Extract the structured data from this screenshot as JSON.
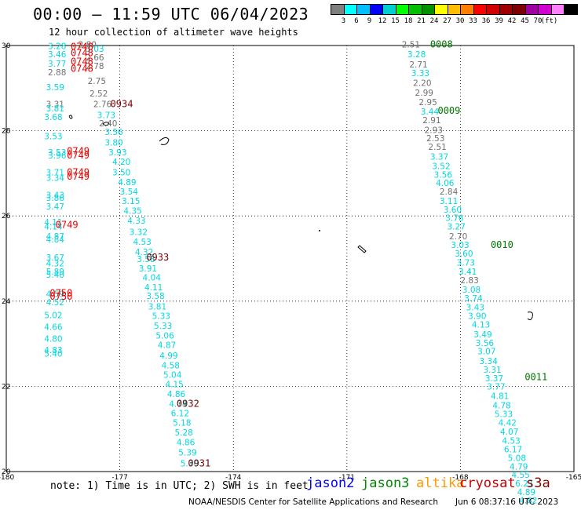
{
  "header": {
    "title": "00:00 – 11:59 UTC 06/04/2023",
    "subtitle": "12 hour collection of altimeter wave heights"
  },
  "colorbar": {
    "unit_label": "(ft)",
    "colors": [
      "#7f7f7f",
      "#00ffff",
      "#00bfff",
      "#0000ff",
      "#00cfcf",
      "#00ff00",
      "#00c000",
      "#009000",
      "#ffff00",
      "#ffbf00",
      "#ff8000",
      "#ff0000",
      "#d00000",
      "#a00000",
      "#800000",
      "#a000a0",
      "#d000d0",
      "#ff80ff",
      "#000000"
    ],
    "labels": [
      "3",
      "6",
      "9",
      "12",
      "15",
      "18",
      "21",
      "24",
      "27",
      "30",
      "33",
      "36",
      "39",
      "42",
      "45",
      "70"
    ]
  },
  "chart_data": {
    "type": "scatter",
    "title": "00:00 – 11:59 UTC 06/04/2023",
    "subtitle": "12 hour collection of altimeter wave heights",
    "xlim": [
      -180,
      -165
    ],
    "ylim": [
      20,
      30
    ],
    "x_ticks": [
      "-180",
      "-177",
      "-174",
      "-171",
      "-168",
      "-165"
    ],
    "x_tick_values": [
      -180,
      -177,
      -174,
      -171,
      -168,
      -165
    ],
    "y_ticks": [
      "20",
      "22",
      "24",
      "26",
      "28",
      "30"
    ],
    "y_tick_values": [
      20,
      22,
      24,
      26,
      28,
      30
    ],
    "grid": true,
    "series_colors": {
      "jason2": "#0000ff",
      "jason3": "#008800",
      "altika": "#ff9900",
      "cryosat": "#cc0000",
      "s3a": "#880000"
    },
    "swh_colors": {
      "cyan": "#00d8e0",
      "gray": "#707070"
    },
    "swh_points": [
      {
        "x": -178.9,
        "y": 29.92,
        "v": "3.28",
        "c": "cyan"
      },
      {
        "x": -178.9,
        "y": 29.72,
        "v": "3.46",
        "c": "cyan"
      },
      {
        "x": -178.9,
        "y": 29.5,
        "v": "3.77",
        "c": "cyan"
      },
      {
        "x": -178.9,
        "y": 29.3,
        "v": "2.88",
        "c": "gray"
      },
      {
        "x": -178.1,
        "y": 29.95,
        "v": "2.80",
        "c": "gray"
      },
      {
        "x": -177.9,
        "y": 29.85,
        "v": "3.03",
        "c": "cyan"
      },
      {
        "x": -177.9,
        "y": 29.65,
        "v": "2.66",
        "c": "gray"
      },
      {
        "x": -177.9,
        "y": 29.45,
        "v": "2.78",
        "c": "gray"
      },
      {
        "x": -177.85,
        "y": 29.1,
        "v": "2.75",
        "c": "gray"
      },
      {
        "x": -178.95,
        "y": 28.95,
        "v": "3.59",
        "c": "cyan"
      },
      {
        "x": -177.8,
        "y": 28.8,
        "v": "2.52",
        "c": "gray"
      },
      {
        "x": -178.95,
        "y": 28.55,
        "v": "3.31",
        "c": "gray"
      },
      {
        "x": -178.95,
        "y": 28.45,
        "v": "3.81",
        "c": "cyan"
      },
      {
        "x": -177.7,
        "y": 28.55,
        "v": "2.76",
        "c": "gray"
      },
      {
        "x": -177.6,
        "y": 28.3,
        "v": "3.73",
        "c": "cyan"
      },
      {
        "x": -179.0,
        "y": 28.25,
        "v": "3.68",
        "c": "cyan"
      },
      {
        "x": -177.55,
        "y": 28.1,
        "v": "2.40",
        "c": "gray"
      },
      {
        "x": -177.4,
        "y": 27.9,
        "v": "3.56",
        "c": "cyan"
      },
      {
        "x": -179.0,
        "y": 27.8,
        "v": "3.53",
        "c": "cyan"
      },
      {
        "x": -177.4,
        "y": 27.65,
        "v": "3.80",
        "c": "cyan"
      },
      {
        "x": -178.9,
        "y": 27.42,
        "v": "3.53",
        "c": "cyan"
      },
      {
        "x": -178.9,
        "y": 27.35,
        "v": "3.96",
        "c": "cyan"
      },
      {
        "x": -177.3,
        "y": 27.42,
        "v": "3.93",
        "c": "cyan"
      },
      {
        "x": -177.2,
        "y": 27.2,
        "v": "4.20",
        "c": "cyan"
      },
      {
        "x": -178.95,
        "y": 26.95,
        "v": "3.71",
        "c": "cyan"
      },
      {
        "x": -178.95,
        "y": 26.82,
        "v": "3.34",
        "c": "cyan"
      },
      {
        "x": -177.2,
        "y": 26.95,
        "v": "3.50",
        "c": "cyan"
      },
      {
        "x": -177.05,
        "y": 26.72,
        "v": "4.89",
        "c": "cyan"
      },
      {
        "x": -177.0,
        "y": 26.5,
        "v": "3.54",
        "c": "cyan"
      },
      {
        "x": -178.95,
        "y": 26.42,
        "v": "3.43",
        "c": "cyan"
      },
      {
        "x": -178.95,
        "y": 26.35,
        "v": "3.86",
        "c": "cyan"
      },
      {
        "x": -176.95,
        "y": 26.28,
        "v": "3.15",
        "c": "cyan"
      },
      {
        "x": -178.95,
        "y": 26.15,
        "v": "3.47",
        "c": "cyan"
      },
      {
        "x": -176.9,
        "y": 26.05,
        "v": "4.35",
        "c": "cyan"
      },
      {
        "x": -176.8,
        "y": 25.82,
        "v": "4.33",
        "c": "cyan"
      },
      {
        "x": -179.0,
        "y": 25.78,
        "v": "4.11",
        "c": "cyan"
      },
      {
        "x": -179.0,
        "y": 25.68,
        "v": "4.14",
        "c": "cyan"
      },
      {
        "x": -176.75,
        "y": 25.55,
        "v": "3.32",
        "c": "cyan"
      },
      {
        "x": -178.95,
        "y": 25.45,
        "v": "4.87",
        "c": "cyan"
      },
      {
        "x": -178.95,
        "y": 25.38,
        "v": "4.84",
        "c": "cyan"
      },
      {
        "x": -176.65,
        "y": 25.32,
        "v": "4.53",
        "c": "cyan"
      },
      {
        "x": -176.6,
        "y": 25.08,
        "v": "4.32",
        "c": "cyan"
      },
      {
        "x": -178.95,
        "y": 24.95,
        "v": "3.67",
        "c": "cyan"
      },
      {
        "x": -176.55,
        "y": 24.92,
        "v": "3.58",
        "c": "cyan"
      },
      {
        "x": -178.95,
        "y": 24.82,
        "v": "4.32",
        "c": "cyan"
      },
      {
        "x": -176.5,
        "y": 24.7,
        "v": "3.91",
        "c": "cyan"
      },
      {
        "x": -178.95,
        "y": 24.62,
        "v": "5.89",
        "c": "cyan"
      },
      {
        "x": -178.95,
        "y": 24.55,
        "v": "5.40",
        "c": "cyan"
      },
      {
        "x": -176.4,
        "y": 24.48,
        "v": "4.04",
        "c": "cyan"
      },
      {
        "x": -176.35,
        "y": 24.25,
        "v": "4.11",
        "c": "cyan"
      },
      {
        "x": -178.95,
        "y": 24.1,
        "v": "4.59",
        "c": "cyan"
      },
      {
        "x": -176.3,
        "y": 24.05,
        "v": "3.58",
        "c": "cyan"
      },
      {
        "x": -178.95,
        "y": 23.9,
        "v": "4.52",
        "c": "cyan"
      },
      {
        "x": -176.25,
        "y": 23.8,
        "v": "3.81",
        "c": "cyan"
      },
      {
        "x": -179.0,
        "y": 23.6,
        "v": "5.02",
        "c": "cyan"
      },
      {
        "x": -176.15,
        "y": 23.58,
        "v": "5.33",
        "c": "cyan"
      },
      {
        "x": -179.0,
        "y": 23.32,
        "v": "4.66",
        "c": "cyan"
      },
      {
        "x": -176.1,
        "y": 23.35,
        "v": "5.33",
        "c": "cyan"
      },
      {
        "x": -176.05,
        "y": 23.12,
        "v": "5.06",
        "c": "cyan"
      },
      {
        "x": -179.0,
        "y": 23.05,
        "v": "4.80",
        "c": "cyan"
      },
      {
        "x": -176.0,
        "y": 22.9,
        "v": "4.87",
        "c": "cyan"
      },
      {
        "x": -179.0,
        "y": 22.78,
        "v": "4.83",
        "c": "cyan"
      },
      {
        "x": -179.0,
        "y": 22.7,
        "v": "5.40",
        "c": "cyan"
      },
      {
        "x": -175.95,
        "y": 22.65,
        "v": "4.99",
        "c": "cyan"
      },
      {
        "x": -175.9,
        "y": 22.42,
        "v": "4.58",
        "c": "cyan"
      },
      {
        "x": -175.85,
        "y": 22.2,
        "v": "5.04",
        "c": "cyan"
      },
      {
        "x": -175.8,
        "y": 21.98,
        "v": "4.15",
        "c": "cyan"
      },
      {
        "x": -175.75,
        "y": 21.75,
        "v": "4.86",
        "c": "cyan"
      },
      {
        "x": -175.7,
        "y": 21.52,
        "v": "4.74",
        "c": "cyan"
      },
      {
        "x": -175.65,
        "y": 21.3,
        "v": "6.12",
        "c": "cyan"
      },
      {
        "x": -175.6,
        "y": 21.08,
        "v": "5.18",
        "c": "cyan"
      },
      {
        "x": -175.55,
        "y": 20.85,
        "v": "5.28",
        "c": "cyan"
      },
      {
        "x": -175.5,
        "y": 20.62,
        "v": "4.86",
        "c": "cyan"
      },
      {
        "x": -175.45,
        "y": 20.38,
        "v": "5.39",
        "c": "cyan"
      },
      {
        "x": -175.4,
        "y": 20.12,
        "v": "5.70",
        "c": "cyan"
      },
      {
        "x": -169.55,
        "y": 29.95,
        "v": "2.51",
        "c": "gray"
      },
      {
        "x": -169.4,
        "y": 29.72,
        "v": "3.28",
        "c": "cyan"
      },
      {
        "x": -169.35,
        "y": 29.48,
        "v": "2.71",
        "c": "gray"
      },
      {
        "x": -169.3,
        "y": 29.28,
        "v": "3.33",
        "c": "cyan"
      },
      {
        "x": -169.25,
        "y": 29.05,
        "v": "2.20",
        "c": "gray"
      },
      {
        "x": -169.2,
        "y": 28.82,
        "v": "2.99",
        "c": "gray"
      },
      {
        "x": -169.1,
        "y": 28.6,
        "v": "2.95",
        "c": "gray"
      },
      {
        "x": -169.05,
        "y": 28.38,
        "v": "3.44",
        "c": "cyan"
      },
      {
        "x": -169.0,
        "y": 28.18,
        "v": "2.91",
        "c": "gray"
      },
      {
        "x": -168.95,
        "y": 27.95,
        "v": "2.93",
        "c": "gray"
      },
      {
        "x": -168.9,
        "y": 27.75,
        "v": "2.53",
        "c": "gray"
      },
      {
        "x": -168.85,
        "y": 27.55,
        "v": "2.51",
        "c": "gray"
      },
      {
        "x": -168.8,
        "y": 27.32,
        "v": "3.37",
        "c": "cyan"
      },
      {
        "x": -168.75,
        "y": 27.1,
        "v": "3.52",
        "c": "cyan"
      },
      {
        "x": -168.7,
        "y": 26.9,
        "v": "3.56",
        "c": "cyan"
      },
      {
        "x": -168.65,
        "y": 26.7,
        "v": "4.06",
        "c": "cyan"
      },
      {
        "x": -168.55,
        "y": 26.5,
        "v": "2.84",
        "c": "gray"
      },
      {
        "x": -168.55,
        "y": 26.28,
        "v": "3.11",
        "c": "cyan"
      },
      {
        "x": -168.45,
        "y": 26.08,
        "v": "3.60",
        "c": "cyan"
      },
      {
        "x": -168.4,
        "y": 25.88,
        "v": "3.76",
        "c": "cyan"
      },
      {
        "x": -168.35,
        "y": 25.68,
        "v": "3.27",
        "c": "cyan"
      },
      {
        "x": -168.3,
        "y": 25.45,
        "v": "2.70",
        "c": "gray"
      },
      {
        "x": -168.25,
        "y": 25.25,
        "v": "3.03",
        "c": "cyan"
      },
      {
        "x": -168.15,
        "y": 25.05,
        "v": "3.60",
        "c": "cyan"
      },
      {
        "x": -168.1,
        "y": 24.83,
        "v": "3.73",
        "c": "cyan"
      },
      {
        "x": -168.05,
        "y": 24.62,
        "v": "3.41",
        "c": "cyan"
      },
      {
        "x": -168.0,
        "y": 24.42,
        "v": "2.83",
        "c": "gray"
      },
      {
        "x": -167.95,
        "y": 24.2,
        "v": "3.08",
        "c": "cyan"
      },
      {
        "x": -167.9,
        "y": 24.0,
        "v": "3.74",
        "c": "cyan"
      },
      {
        "x": -167.85,
        "y": 23.78,
        "v": "3.43",
        "c": "cyan"
      },
      {
        "x": -167.8,
        "y": 23.58,
        "v": "3.90",
        "c": "cyan"
      },
      {
        "x": -167.7,
        "y": 23.38,
        "v": "4.13",
        "c": "cyan"
      },
      {
        "x": -167.65,
        "y": 23.15,
        "v": "3.49",
        "c": "cyan"
      },
      {
        "x": -167.6,
        "y": 22.95,
        "v": "3.56",
        "c": "cyan"
      },
      {
        "x": -167.55,
        "y": 22.75,
        "v": "3.07",
        "c": "cyan"
      },
      {
        "x": -167.5,
        "y": 22.52,
        "v": "3.34",
        "c": "cyan"
      },
      {
        "x": -167.4,
        "y": 22.32,
        "v": "3.31",
        "c": "cyan"
      },
      {
        "x": -167.35,
        "y": 22.12,
        "v": "3.37",
        "c": "cyan"
      },
      {
        "x": -167.3,
        "y": 21.92,
        "v": "3.77",
        "c": "cyan"
      },
      {
        "x": -167.2,
        "y": 21.7,
        "v": "4.81",
        "c": "cyan"
      },
      {
        "x": -167.15,
        "y": 21.48,
        "v": "4.78",
        "c": "cyan"
      },
      {
        "x": -167.1,
        "y": 21.28,
        "v": "5.33",
        "c": "cyan"
      },
      {
        "x": -167.0,
        "y": 21.08,
        "v": "4.42",
        "c": "cyan"
      },
      {
        "x": -166.95,
        "y": 20.87,
        "v": "4.07",
        "c": "cyan"
      },
      {
        "x": -166.9,
        "y": 20.65,
        "v": "4.53",
        "c": "cyan"
      },
      {
        "x": -166.85,
        "y": 20.45,
        "v": "6.17",
        "c": "cyan"
      },
      {
        "x": -166.75,
        "y": 20.25,
        "v": "5.08",
        "c": "cyan"
      },
      {
        "x": -166.7,
        "y": 20.05,
        "v": "4.79",
        "c": "cyan"
      },
      {
        "x": -166.65,
        "y": 19.85,
        "v": "4.55",
        "c": "cyan"
      },
      {
        "x": -166.55,
        "y": 19.65,
        "v": "6.21",
        "c": "cyan"
      },
      {
        "x": -166.5,
        "y": 19.45,
        "v": "4.89",
        "c": "cyan"
      },
      {
        "x": -166.45,
        "y": 19.25,
        "v": "4.82",
        "c": "cyan"
      }
    ],
    "time_labels": [
      {
        "x": -178.3,
        "y": 29.9,
        "v": "0748",
        "c": "red"
      },
      {
        "x": -178.3,
        "y": 29.75,
        "v": "0748",
        "c": "red"
      },
      {
        "x": -178.3,
        "y": 29.55,
        "v": "0748",
        "c": "red"
      },
      {
        "x": -178.3,
        "y": 29.38,
        "v": "0748",
        "c": "red"
      },
      {
        "x": -178.4,
        "y": 27.45,
        "v": "0749",
        "c": "red"
      },
      {
        "x": -178.4,
        "y": 27.35,
        "v": "0749",
        "c": "red"
      },
      {
        "x": -178.4,
        "y": 26.95,
        "v": "0749",
        "c": "red"
      },
      {
        "x": -178.4,
        "y": 26.85,
        "v": "0749",
        "c": "red"
      },
      {
        "x": -178.7,
        "y": 25.72,
        "v": "0749",
        "c": "red"
      },
      {
        "x": -178.85,
        "y": 24.12,
        "v": "0750",
        "c": "red"
      },
      {
        "x": -178.85,
        "y": 24.03,
        "v": "0750",
        "c": "red"
      },
      {
        "x": -177.25,
        "y": 28.55,
        "v": "0934",
        "c": "darkred"
      },
      {
        "x": -176.3,
        "y": 24.95,
        "v": "0933",
        "c": "darkred"
      },
      {
        "x": -175.5,
        "y": 21.52,
        "v": "0932",
        "c": "darkred"
      },
      {
        "x": -175.2,
        "y": 20.12,
        "v": "0931",
        "c": "darkred"
      },
      {
        "x": -168.8,
        "y": 29.95,
        "v": "0008",
        "c": "green"
      },
      {
        "x": -168.6,
        "y": 28.4,
        "v": "0009",
        "c": "green"
      },
      {
        "x": -167.2,
        "y": 25.25,
        "v": "0010",
        "c": "green"
      },
      {
        "x": -166.3,
        "y": 22.15,
        "v": "0011",
        "c": "green"
      }
    ],
    "time_label_colors": {
      "red": "#ee0000",
      "darkred": "#770000",
      "green": "#007700"
    }
  },
  "footer": {
    "note": "note:  1) Time is in UTC;  2) SWH is in feet",
    "legend": [
      {
        "name": "jason2",
        "color": "#0000ff"
      },
      {
        "name": "jason3",
        "color": "#008800"
      },
      {
        "name": "altika",
        "color": "#ff9900"
      },
      {
        "name": "cryosat",
        "color": "#cc0000"
      },
      {
        "name": "s3a",
        "color": "#880000"
      }
    ],
    "credit": "NOAA/NESDIS Center for Satellite Applications and Research",
    "timestamp": "Jun  6 08:37:16 UTC 2023"
  }
}
